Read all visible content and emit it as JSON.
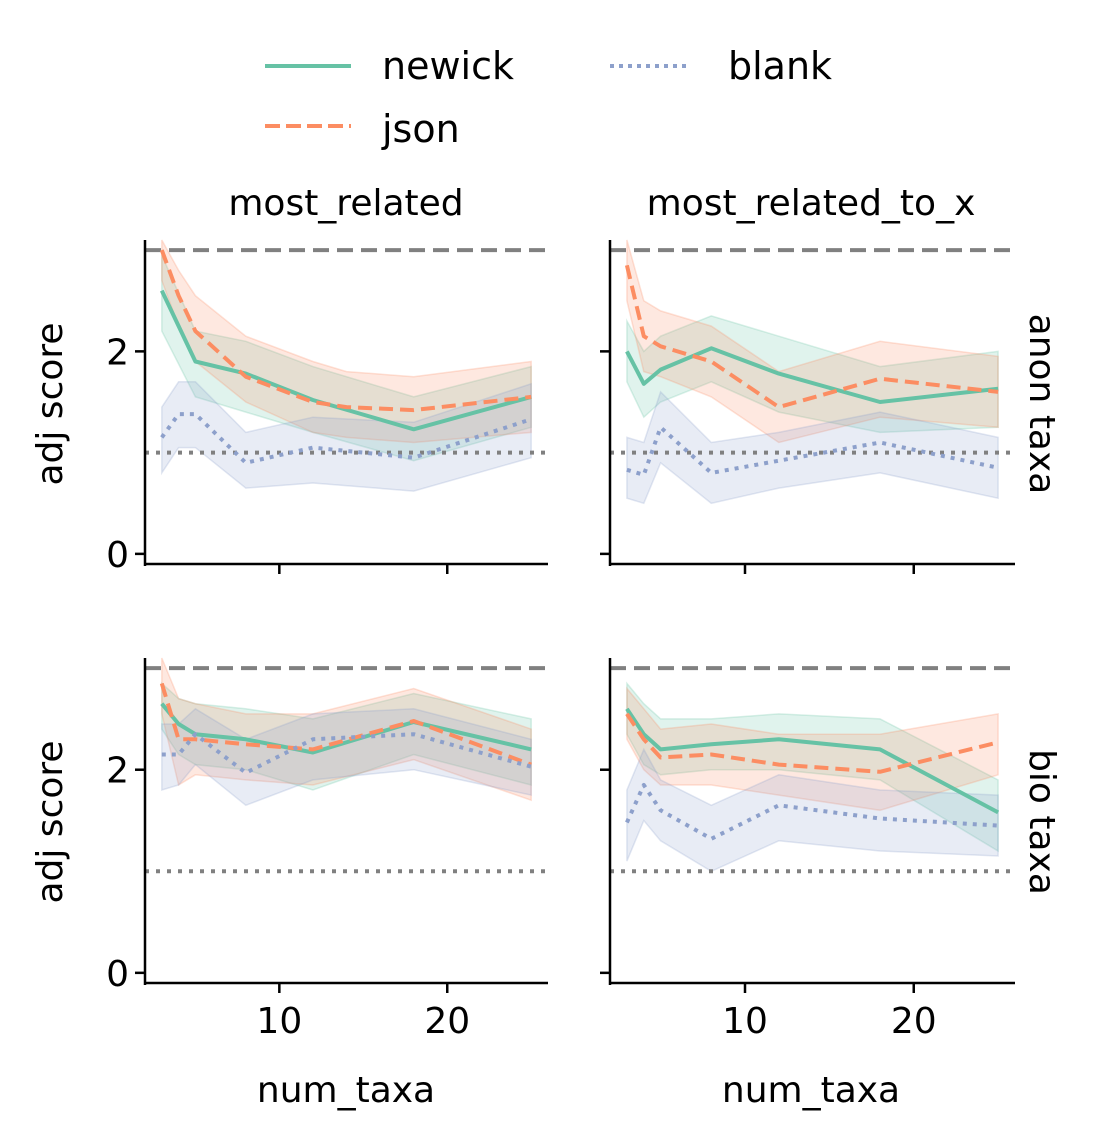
{
  "chart_data": {
    "type": "line",
    "xlabel": "num_taxa",
    "ylabel": "adj score",
    "column_labels": [
      "most_related",
      "most_related_to_x"
    ],
    "row_labels": [
      "anon taxa",
      "bio taxa"
    ],
    "xlim": [
      2,
      26
    ],
    "ylim": [
      -0.1,
      3.1
    ],
    "x_ticks": [
      10,
      20
    ],
    "y_ticks": [
      0,
      2
    ],
    "reference_lines": [
      {
        "y": 3,
        "style": "dashed",
        "color": "#808080"
      },
      {
        "y": 1,
        "style": "dotted",
        "color": "#808080"
      }
    ],
    "legend": {
      "position": "top-center",
      "entries": [
        {
          "name": "newick",
          "color": "#66c2a5",
          "style": "solid"
        },
        {
          "name": "json",
          "color": "#fc8d62",
          "style": "dashed"
        },
        {
          "name": "blank",
          "color": "#8da0cb",
          "style": "dotted"
        }
      ]
    },
    "panels": [
      {
        "row": "anon taxa",
        "col": "most_related",
        "series": [
          {
            "name": "newick",
            "x": [
              3,
              5,
              8,
              12,
              18,
              25
            ],
            "y": [
              2.6,
              1.9,
              1.78,
              1.52,
              1.23,
              1.55
            ],
            "lower": [
              2.2,
              1.55,
              1.4,
              1.2,
              0.92,
              1.25
            ],
            "upper": [
              2.95,
              2.2,
              2.1,
              1.85,
              1.55,
              1.85
            ]
          },
          {
            "name": "json",
            "x": [
              3,
              4,
              5,
              8,
              12,
              14,
              18,
              25
            ],
            "y": [
              3.0,
              2.55,
              2.2,
              1.75,
              1.5,
              1.45,
              1.42,
              1.55
            ],
            "lower": [
              2.7,
              2.25,
              1.9,
              1.5,
              1.2,
              1.15,
              1.1,
              1.2
            ],
            "upper": [
              3.2,
              2.8,
              2.55,
              2.15,
              1.9,
              1.8,
              1.75,
              1.9
            ]
          },
          {
            "name": "blank",
            "x": [
              3,
              4,
              5,
              8,
              12,
              18,
              25
            ],
            "y": [
              1.15,
              1.38,
              1.38,
              0.9,
              1.05,
              0.95,
              1.33
            ],
            "lower": [
              0.8,
              1.05,
              1.05,
              0.65,
              0.7,
              0.62,
              0.95
            ],
            "upper": [
              1.45,
              1.7,
              1.7,
              1.2,
              1.35,
              1.3,
              1.68
            ]
          }
        ]
      },
      {
        "row": "anon taxa",
        "col": "most_related_to_x",
        "series": [
          {
            "name": "newick",
            "x": [
              3,
              4,
              5,
              8,
              12,
              18,
              25
            ],
            "y": [
              2.0,
              1.68,
              1.82,
              2.03,
              1.78,
              1.5,
              1.63
            ],
            "lower": [
              1.7,
              1.35,
              1.5,
              1.7,
              1.4,
              1.2,
              1.25
            ],
            "upper": [
              2.3,
              2.0,
              2.15,
              2.35,
              2.15,
              1.85,
              2.0
            ]
          },
          {
            "name": "json",
            "x": [
              3,
              4,
              5,
              8,
              12,
              18,
              25
            ],
            "y": [
              2.85,
              2.15,
              2.05,
              1.9,
              1.45,
              1.73,
              1.6
            ],
            "lower": [
              2.5,
              1.8,
              1.75,
              1.55,
              1.1,
              1.35,
              1.25
            ],
            "upper": [
              3.1,
              2.5,
              2.4,
              2.25,
              1.8,
              2.1,
              1.95
            ]
          },
          {
            "name": "blank",
            "x": [
              3,
              4,
              5,
              8,
              12,
              18,
              25
            ],
            "y": [
              0.83,
              0.78,
              1.25,
              0.8,
              0.92,
              1.1,
              0.85
            ],
            "lower": [
              0.55,
              0.5,
              0.9,
              0.5,
              0.65,
              0.8,
              0.55
            ],
            "upper": [
              1.15,
              1.1,
              1.6,
              1.1,
              1.2,
              1.4,
              1.15
            ]
          }
        ]
      },
      {
        "row": "bio taxa",
        "col": "most_related",
        "series": [
          {
            "name": "newick",
            "x": [
              3,
              4,
              5,
              8,
              12,
              18,
              25
            ],
            "y": [
              2.65,
              2.45,
              2.35,
              2.3,
              2.17,
              2.47,
              2.2
            ],
            "lower": [
              2.4,
              2.15,
              2.05,
              2.0,
              1.8,
              2.15,
              1.85
            ],
            "upper": [
              2.85,
              2.7,
              2.65,
              2.6,
              2.5,
              2.75,
              2.5
            ]
          },
          {
            "name": "json",
            "x": [
              3,
              4,
              5,
              8,
              12,
              18,
              25
            ],
            "y": [
              2.85,
              2.3,
              2.3,
              2.25,
              2.2,
              2.48,
              2.05
            ],
            "lower": [
              2.55,
              1.85,
              1.95,
              1.9,
              1.85,
              2.1,
              1.7
            ],
            "upper": [
              3.1,
              2.7,
              2.65,
              2.55,
              2.55,
              2.8,
              2.4
            ]
          },
          {
            "name": "blank",
            "x": [
              3,
              4,
              5,
              8,
              12,
              18,
              25
            ],
            "y": [
              2.15,
              2.15,
              2.35,
              1.97,
              2.3,
              2.35,
              2.03
            ],
            "lower": [
              1.8,
              1.85,
              2.05,
              1.65,
              1.9,
              2.0,
              1.75
            ],
            "upper": [
              2.45,
              2.45,
              2.6,
              2.3,
              2.55,
              2.6,
              2.3
            ]
          }
        ]
      },
      {
        "row": "bio taxa",
        "col": "most_related_to_x",
        "series": [
          {
            "name": "newick",
            "x": [
              3,
              4,
              5,
              8,
              12,
              18,
              25
            ],
            "y": [
              2.6,
              2.35,
              2.2,
              2.25,
              2.3,
              2.2,
              1.58
            ],
            "lower": [
              2.35,
              2.05,
              1.95,
              2.0,
              2.0,
              1.9,
              1.2
            ],
            "upper": [
              2.85,
              2.65,
              2.5,
              2.5,
              2.55,
              2.5,
              1.9
            ]
          },
          {
            "name": "json",
            "x": [
              3,
              4,
              5,
              8,
              12,
              18,
              25
            ],
            "y": [
              2.55,
              2.3,
              2.12,
              2.15,
              2.05,
              1.98,
              2.27
            ],
            "lower": [
              2.3,
              2.0,
              1.85,
              1.85,
              1.75,
              1.6,
              1.95
            ],
            "upper": [
              2.8,
              2.6,
              2.4,
              2.45,
              2.35,
              2.35,
              2.55
            ]
          },
          {
            "name": "blank",
            "x": [
              3,
              4,
              5,
              8,
              12,
              18,
              25
            ],
            "y": [
              1.48,
              1.85,
              1.6,
              1.32,
              1.65,
              1.52,
              1.45
            ],
            "lower": [
              1.1,
              1.5,
              1.3,
              1.0,
              1.3,
              1.2,
              1.15
            ],
            "upper": [
              1.8,
              2.2,
              1.9,
              1.65,
              1.95,
              1.8,
              1.75
            ]
          }
        ]
      }
    ]
  }
}
